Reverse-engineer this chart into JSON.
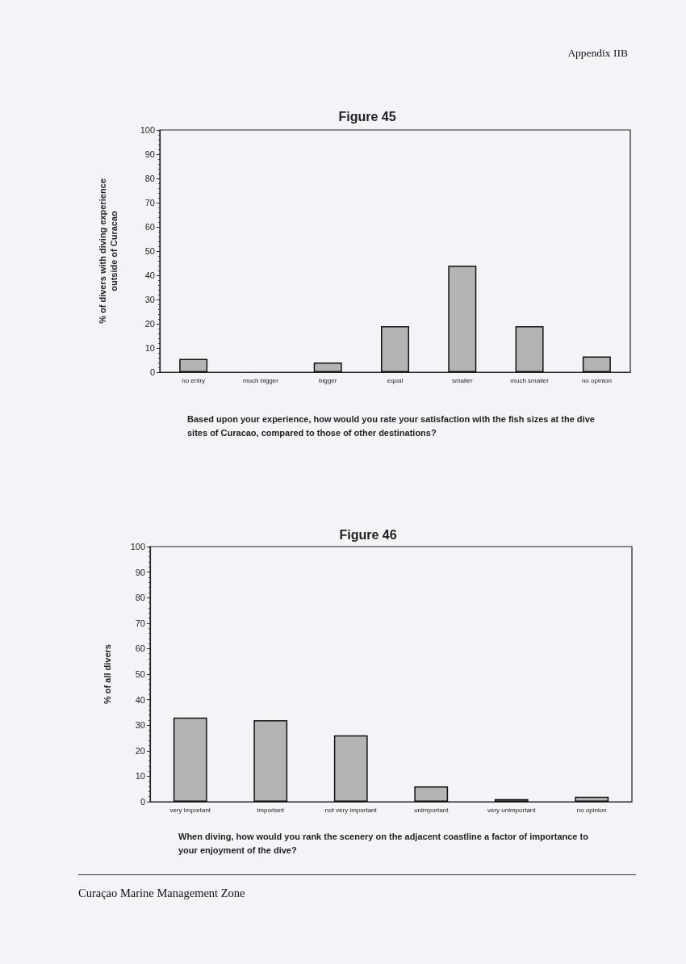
{
  "chart_data": [
    {
      "type": "bar",
      "title": "Figure 45",
      "ylabel": "% of divers with diving experience outside of Curacao",
      "categories": [
        "no entry",
        "much bigger",
        "bigger",
        "equal",
        "smaller",
        "much smaller",
        "no opinion"
      ],
      "values": [
        5.5,
        0,
        4,
        19,
        44,
        19,
        6.5
      ],
      "color": "#b4b4b4",
      "ylim": [
        0,
        100
      ],
      "yticks": [
        0,
        {
          "value": 2,
          "label": null
        },
        {
          "value": 4,
          "label": null
        },
        {
          "value": 6,
          "label": null
        },
        {
          "value": 8,
          "label": null
        },
        10,
        {
          "value": 12,
          "label": null
        },
        {
          "value": 14,
          "label": null
        },
        {
          "value": 16,
          "label": null
        },
        {
          "value": 18,
          "label": null
        },
        20,
        {
          "value": 22,
          "label": null
        },
        {
          "value": 24,
          "label": null
        },
        {
          "value": 26,
          "label": null
        },
        {
          "value": 28,
          "label": null
        },
        30,
        {
          "value": 32,
          "label": null
        },
        {
          "value": 34,
          "label": null
        },
        {
          "value": 36,
          "label": null
        },
        {
          "value": 38,
          "label": null
        },
        40,
        {
          "value": 42,
          "label": null
        },
        {
          "value": 44,
          "label": null
        },
        {
          "value": 46,
          "label": null
        },
        {
          "value": 48,
          "label": null
        },
        50,
        {
          "value": 52,
          "label": null
        },
        {
          "value": 54,
          "label": null
        },
        {
          "value": 56,
          "label": null
        },
        {
          "value": 58,
          "label": null
        },
        60,
        {
          "value": 62,
          "label": null
        },
        {
          "value": 64,
          "label": null
        },
        {
          "value": 66,
          "label": null
        },
        {
          "value": 68,
          "label": null
        },
        70,
        {
          "value": 72,
          "label": null
        },
        {
          "value": 74,
          "label": null
        },
        {
          "value": 76,
          "label": null
        },
        {
          "value": 78,
          "label": null
        },
        80,
        {
          "value": 82,
          "label": null
        },
        {
          "value": 84,
          "label": null
        },
        {
          "value": 86,
          "label": null
        },
        {
          "value": 88,
          "label": null
        },
        90,
        {
          "value": 92,
          "label": null
        },
        {
          "value": 94,
          "label": null
        },
        {
          "value": 96,
          "label": null
        },
        {
          "value": 98,
          "label": null
        },
        100
      ],
      "grid": false,
      "annotations": [
        "Appendix IIB",
        "Based upon your experience, how would you rate your satisfaction with the fish sizes at the dive sites of Curacao, compared to those of other destinations?"
      ]
    },
    {
      "type": "bar",
      "title": "Figure 46",
      "ylabel": "% of all divers",
      "categories": [
        "very important",
        "important",
        "not very important",
        "unimportant",
        "very unimportant",
        "no opinion"
      ],
      "values": [
        33,
        32,
        26,
        6,
        1,
        2
      ],
      "color": "#b4b4b4",
      "ylim": [
        0,
        100
      ],
      "yticks": [
        0,
        {
          "value": 2,
          "label": null
        },
        {
          "value": 4,
          "label": null
        },
        {
          "value": 6,
          "label": null
        },
        {
          "value": 8,
          "label": null
        },
        10,
        {
          "value": 12,
          "label": null
        },
        {
          "value": 14,
          "label": null
        },
        {
          "value": 16,
          "label": null
        },
        {
          "value": 18,
          "label": null
        },
        20,
        {
          "value": 22,
          "label": null
        },
        {
          "value": 24,
          "label": null
        },
        {
          "value": 26,
          "label": null
        },
        {
          "value": 28,
          "label": null
        },
        30,
        {
          "value": 32,
          "label": null
        },
        {
          "value": 34,
          "label": null
        },
        {
          "value": 36,
          "label": null
        },
        {
          "value": 38,
          "label": null
        },
        40,
        {
          "value": 42,
          "label": null
        },
        {
          "value": 44,
          "label": null
        },
        {
          "value": 46,
          "label": null
        },
        {
          "value": 48,
          "label": null
        },
        50,
        {
          "value": 52,
          "label": null
        },
        {
          "value": 54,
          "label": null
        },
        {
          "value": 56,
          "label": null
        },
        {
          "value": 58,
          "label": null
        },
        60,
        {
          "value": 62,
          "label": null
        },
        {
          "value": 64,
          "label": null
        },
        {
          "value": 66,
          "label": null
        },
        {
          "value": 68,
          "label": null
        },
        70,
        {
          "value": 72,
          "label": null
        },
        {
          "value": 74,
          "label": null
        },
        {
          "value": 76,
          "label": null
        },
        {
          "value": 78,
          "label": null
        },
        80,
        {
          "value": 82,
          "label": null
        },
        {
          "value": 84,
          "label": null
        },
        {
          "value": 86,
          "label": null
        },
        {
          "value": 88,
          "label": null
        },
        90,
        {
          "value": 92,
          "label": null
        },
        {
          "value": 94,
          "label": null
        },
        {
          "value": 96,
          "label": null
        },
        {
          "value": 98,
          "label": null
        },
        100
      ],
      "grid": false,
      "annotations": [
        "When diving, how would you rank the scenery on the adjacent coastline a factor of importance to your enjoyment of the dive?",
        "Curaçao Marine Management Zone"
      ]
    }
  ]
}
